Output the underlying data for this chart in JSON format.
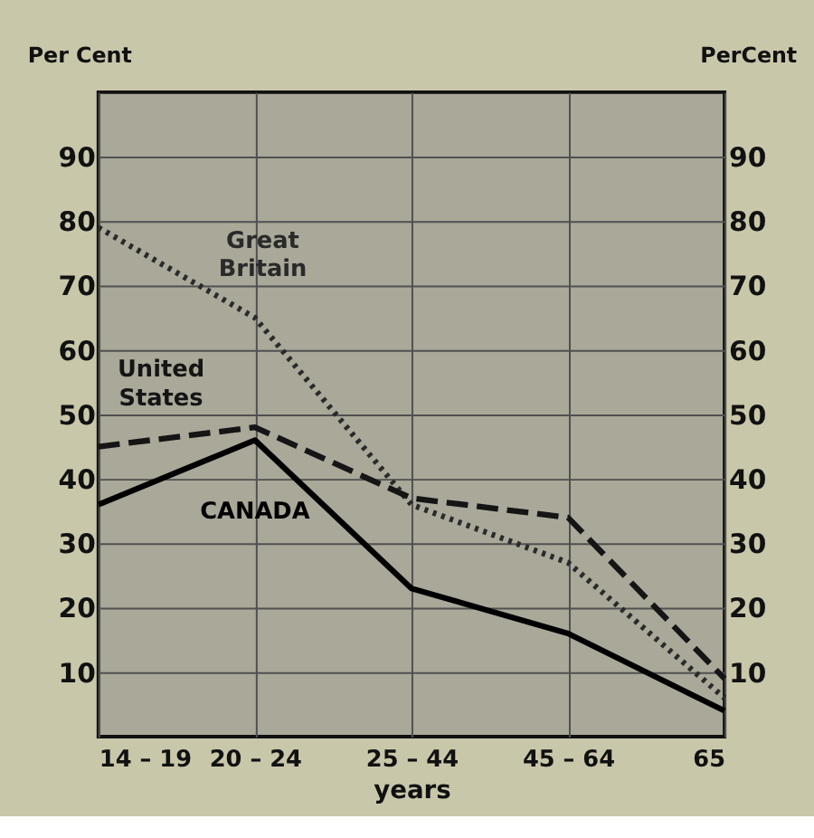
{
  "chart_data": {
    "type": "line",
    "xlabel": "years",
    "ylabel": "Per Cent",
    "y2label": "PerCent",
    "categories": [
      "14 – 19",
      "20 – 24",
      "25 – 44",
      "45 – 64",
      "65"
    ],
    "series": [
      {
        "name": "Great Britain",
        "color": "#2a2a2a",
        "line_style": "dotted",
        "values": [
          79,
          65,
          36,
          27,
          6
        ]
      },
      {
        "name": "United States",
        "color": "#151515",
        "line_style": "dashed",
        "values": [
          45,
          48,
          37,
          34,
          9
        ]
      },
      {
        "name": "CANADA",
        "color": "#000000",
        "line_style": "solid",
        "values": [
          36,
          46,
          23,
          16,
          4
        ]
      }
    ],
    "ylim": [
      0,
      100
    ],
    "yticks": [
      10,
      20,
      30,
      40,
      50,
      60,
      70,
      80,
      90
    ],
    "y2lim": [
      0,
      100
    ],
    "y2ticks": [
      10,
      20,
      30,
      40,
      50,
      60,
      70,
      80,
      90
    ],
    "grid": true,
    "legend": false,
    "marker": "none"
  }
}
